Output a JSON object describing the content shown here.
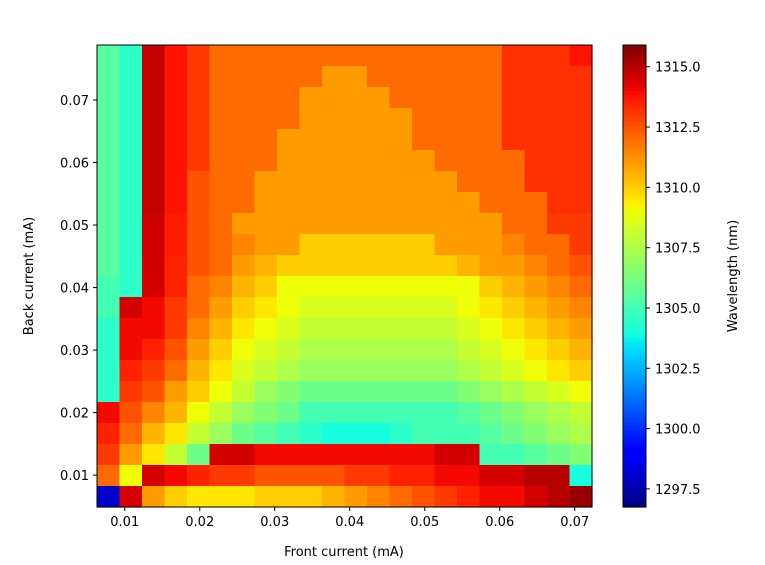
{
  "chart_data": {
    "type": "heatmap",
    "title": "",
    "xlabel": "Front current (mA)",
    "ylabel": "Back current (mA)",
    "colorbar_label": "Wavelength (nm)",
    "colormap": "jet",
    "xlim": [
      0.0063,
      0.0723
    ],
    "ylim": [
      0.0049,
      0.0788
    ],
    "clim": [
      1296.75,
      1315.9
    ],
    "xticks": [
      0.01,
      0.02,
      0.03,
      0.04,
      0.05,
      0.06,
      0.07
    ],
    "xtick_labels": [
      "0.01",
      "0.02",
      "0.03",
      "0.04",
      "0.05",
      "0.06",
      "0.07"
    ],
    "yticks": [
      0.01,
      0.02,
      0.03,
      0.04,
      0.05,
      0.06,
      0.07
    ],
    "ytick_labels": [
      "0.01",
      "0.02",
      "0.03",
      "0.04",
      "0.05",
      "0.06",
      "0.07"
    ],
    "cbar_ticks": [
      1297.5,
      1300.0,
      1302.5,
      1305.0,
      1307.5,
      1310.0,
      1312.5,
      1315.0
    ],
    "cbar_tick_labels": [
      "1297.5",
      "1300.0",
      "1302.5",
      "1305.0",
      "1307.5",
      "1310.0",
      "1312.5",
      "1315.0"
    ],
    "grid": false,
    "rows_order": "top-to-bottom (high back current first)",
    "z": [
      [
        1305.5,
        1304.5,
        1314.8,
        1313.8,
        1313,
        1312,
        1312,
        1312,
        1312,
        1312,
        1312,
        1312,
        1312,
        1312,
        1312,
        1312,
        1312,
        1312,
        1313.2,
        1313.2,
        1313.2,
        1313.8
      ],
      [
        1305.5,
        1304.5,
        1314.8,
        1313.8,
        1313,
        1312,
        1312,
        1312,
        1312,
        1312,
        1311,
        1311,
        1312,
        1312,
        1312,
        1312,
        1312,
        1312,
        1313.2,
        1313.2,
        1313.2,
        1313.2
      ],
      [
        1305.5,
        1304.5,
        1314.8,
        1313.8,
        1313,
        1312,
        1312,
        1312,
        1312,
        1311,
        1311,
        1311,
        1311,
        1312,
        1312,
        1312,
        1312,
        1312,
        1313.2,
        1313.2,
        1313.2,
        1313.2
      ],
      [
        1305.5,
        1304.5,
        1314.8,
        1313.8,
        1313,
        1312,
        1312,
        1312,
        1312,
        1311,
        1311,
        1311,
        1311,
        1311,
        1312,
        1312,
        1312,
        1312,
        1313.2,
        1313.2,
        1313.2,
        1313.2
      ],
      [
        1305.5,
        1304.5,
        1314.8,
        1313.8,
        1313,
        1312,
        1312,
        1312,
        1311,
        1311,
        1311,
        1311,
        1311,
        1311,
        1312,
        1312,
        1312,
        1312,
        1313.2,
        1313.2,
        1313.2,
        1313.2
      ],
      [
        1305.5,
        1304.5,
        1314.8,
        1313.8,
        1313,
        1312,
        1312,
        1312,
        1311,
        1311,
        1311,
        1311,
        1311,
        1311,
        1311,
        1312,
        1312,
        1312,
        1312,
        1313.2,
        1313.2,
        1313.2
      ],
      [
        1305.5,
        1304.5,
        1314.8,
        1313.8,
        1312.5,
        1312,
        1312,
        1311,
        1311,
        1311,
        1311,
        1311,
        1311,
        1311,
        1311,
        1311,
        1312,
        1312,
        1312,
        1313.2,
        1313.2,
        1313.2
      ],
      [
        1305.5,
        1304.5,
        1314.8,
        1313.8,
        1312.5,
        1312,
        1312,
        1311,
        1311,
        1311,
        1311,
        1311,
        1311,
        1311,
        1311,
        1311,
        1311,
        1312,
        1312,
        1312,
        1313.2,
        1313.2
      ],
      [
        1305.5,
        1304.5,
        1314.6,
        1313.6,
        1312.5,
        1312,
        1311,
        1311,
        1311,
        1311,
        1311,
        1311,
        1311,
        1311,
        1311,
        1311,
        1311,
        1311,
        1312,
        1312,
        1313,
        1313
      ],
      [
        1305.5,
        1304.5,
        1314.6,
        1313.6,
        1312.5,
        1312,
        1311.5,
        1311,
        1311,
        1310,
        1310,
        1310,
        1310,
        1310,
        1310,
        1311,
        1311,
        1311,
        1311.5,
        1312,
        1312,
        1313
      ],
      [
        1305.5,
        1304.5,
        1314.5,
        1313.5,
        1312.5,
        1312,
        1311,
        1310.5,
        1310,
        1310,
        1310,
        1310,
        1310,
        1310,
        1310,
        1310,
        1310.5,
        1311,
        1311,
        1311.5,
        1312,
        1312.5
      ],
      [
        1305,
        1304.5,
        1314.5,
        1313.5,
        1312,
        1311.5,
        1310.5,
        1310,
        1309,
        1309,
        1309,
        1309,
        1309,
        1309,
        1309,
        1309,
        1309,
        1310,
        1310.5,
        1311,
        1311.5,
        1312
      ],
      [
        1305,
        1314.5,
        1314,
        1313,
        1312,
        1311,
        1310,
        1309.5,
        1309,
        1308.5,
        1308.5,
        1308.5,
        1308.5,
        1308.5,
        1308.5,
        1308.5,
        1309,
        1309.5,
        1310,
        1310.5,
        1311,
        1311.5
      ],
      [
        1304.5,
        1314,
        1314,
        1313,
        1311.5,
        1310.5,
        1309.5,
        1309,
        1308.5,
        1308,
        1308,
        1308,
        1308,
        1308,
        1308,
        1308,
        1308.5,
        1309,
        1309.5,
        1310,
        1310.5,
        1311
      ],
      [
        1304.5,
        1314,
        1313.5,
        1312.5,
        1311,
        1310,
        1309,
        1308.5,
        1308,
        1307.5,
        1307.5,
        1307.5,
        1307.5,
        1307.5,
        1307.5,
        1307.5,
        1308,
        1308.5,
        1309,
        1309.5,
        1310,
        1310.5
      ],
      [
        1304.5,
        1313.5,
        1313,
        1312,
        1310.5,
        1309.5,
        1308.5,
        1308,
        1307.5,
        1307,
        1307,
        1307,
        1307,
        1307,
        1307,
        1307,
        1307.5,
        1308,
        1308.5,
        1309,
        1309.5,
        1310
      ],
      [
        1304.5,
        1313,
        1312.5,
        1311,
        1310,
        1309,
        1308,
        1307,
        1306.5,
        1306,
        1306,
        1306,
        1306,
        1306,
        1306,
        1306,
        1306.5,
        1307,
        1307.5,
        1308,
        1308.5,
        1309
      ],
      [
        1314,
        1312.5,
        1311.5,
        1310.5,
        1309,
        1308,
        1307,
        1306.5,
        1306,
        1305,
        1305,
        1305,
        1305,
        1305,
        1305,
        1305,
        1305.5,
        1306,
        1306.5,
        1307,
        1307.5,
        1308
      ],
      [
        1313.5,
        1312,
        1310.5,
        1309.5,
        1308,
        1307,
        1306,
        1305.5,
        1305,
        1304.5,
        1304,
        1304,
        1304,
        1304.5,
        1305,
        1305,
        1305,
        1305.5,
        1306,
        1306.5,
        1307,
        1307.5
      ],
      [
        1313,
        1311,
        1309.5,
        1308,
        1306,
        1314.5,
        1314.5,
        1314,
        1314,
        1314,
        1314,
        1314,
        1314,
        1314,
        1314,
        1314.5,
        1314.5,
        1305,
        1305,
        1305.5,
        1306,
        1306.5
      ],
      [
        1312,
        1309,
        1314.5,
        1314,
        1313.5,
        1313,
        1313,
        1312.5,
        1312.5,
        1312.5,
        1312.5,
        1313,
        1313,
        1313.5,
        1313.5,
        1314,
        1314,
        1314.5,
        1314.5,
        1315,
        1315,
        1304
      ],
      [
        1298,
        1314.5,
        1311,
        1310,
        1309.5,
        1309.5,
        1309.5,
        1310,
        1310,
        1310,
        1310.5,
        1311,
        1311.5,
        1312,
        1312.5,
        1313,
        1313.5,
        1314,
        1314,
        1314.5,
        1315,
        1315.5
      ]
    ]
  }
}
